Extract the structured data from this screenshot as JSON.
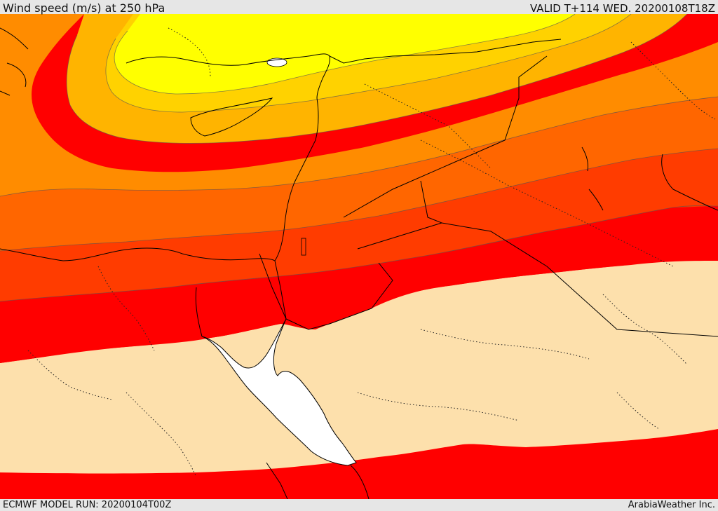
{
  "header": {
    "title": "Wind speed (m/s) at 250 hPa",
    "valid": "VALID T+114 WED. 20200108T18Z"
  },
  "footer": {
    "model_run": "ECMWF MODEL RUN: 20200104T00Z",
    "credit": "ArabiaWeather Inc."
  },
  "map": {
    "variable": "wind speed",
    "level": "250 hPa",
    "units": "m/s",
    "colors": {
      "yellow": "#ffff00",
      "light_orange": "#ffd200",
      "orange": "#ffb400",
      "deep_orange": "#ff8c00",
      "orange_red": "#ff6600",
      "red_orange": "#ff3c00",
      "red": "#ff0000",
      "tan": "#fde0ac",
      "water": "#ffffff"
    }
  }
}
